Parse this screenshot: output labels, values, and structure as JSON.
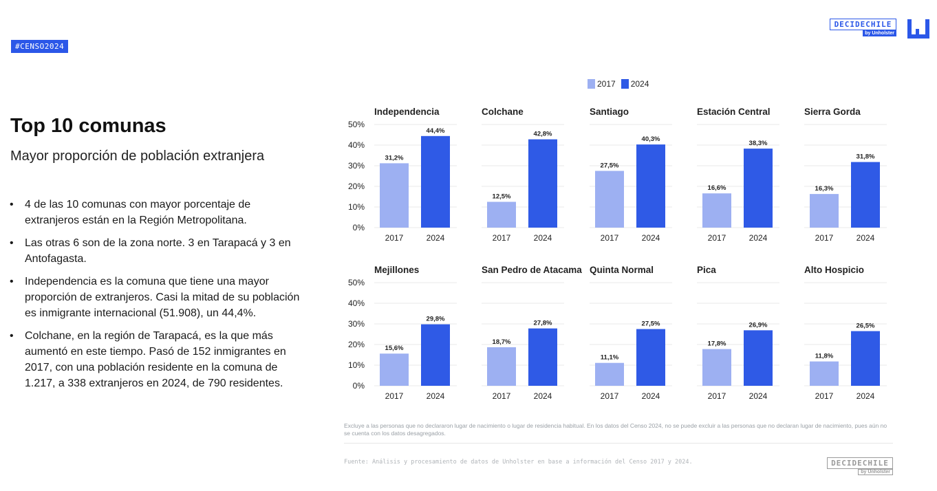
{
  "tag": "#CENSO2024",
  "brand": {
    "name": "DECIDECHILE",
    "by": "by Unholster"
  },
  "title": "Top 10 comunas",
  "subtitle": "Mayor proporción de población extranjera",
  "bullets": [
    "4 de las 10 comunas con mayor porcentaje de extranjeros están en la Región Metropolitana.",
    "Las otras 6 son de la zona norte. 3 en Tarapacá y 3 en Antofagasta.",
    "Independencia es la comuna que tiene una mayor proporción de extranjeros. Casi la mitad de su población es inmigrante internacional (51.908), un 44,4%.",
    "Colchane, en la región de Tarapacá, es la que más aumentó en este tiempo. Pasó de 152 inmigrantes en 2017, con una población residente en la comuna de 1.217, a 338 extranjeros en 2024, de 790 residentes."
  ],
  "colors": {
    "y2017": "#9db0f2",
    "y2024": "#2f5ae6",
    "grid": "#e9e9e9"
  },
  "chart_data": {
    "type": "bar",
    "categories": [
      "2017",
      "2024"
    ],
    "series": [
      {
        "name": "2017"
      },
      {
        "name": "2024"
      }
    ],
    "ylim": [
      0,
      50
    ],
    "yticks": [
      "0%",
      "10%",
      "20%",
      "30%",
      "40%",
      "50%"
    ],
    "panels": [
      {
        "title": "Independencia",
        "values": [
          31.2,
          44.4
        ],
        "labels": [
          "31,2%",
          "44,4%"
        ]
      },
      {
        "title": "Colchane",
        "values": [
          12.5,
          42.8
        ],
        "labels": [
          "12,5%",
          "42,8%"
        ]
      },
      {
        "title": "Santiago",
        "values": [
          27.5,
          40.3
        ],
        "labels": [
          "27,5%",
          "40,3%"
        ]
      },
      {
        "title": "Estación Central",
        "values": [
          16.6,
          38.3
        ],
        "labels": [
          "16,6%",
          "38,3%"
        ]
      },
      {
        "title": "Sierra Gorda",
        "values": [
          16.3,
          31.8
        ],
        "labels": [
          "16,3%",
          "31,8%"
        ]
      },
      {
        "title": "Mejillones",
        "values": [
          15.6,
          29.8
        ],
        "labels": [
          "15,6%",
          "29,8%"
        ]
      },
      {
        "title": "San Pedro de Atacama",
        "values": [
          18.7,
          27.8
        ],
        "labels": [
          "18,7%",
          "27,8%"
        ]
      },
      {
        "title": "Quinta Normal",
        "values": [
          11.1,
          27.5
        ],
        "labels": [
          "11,1%",
          "27,5%"
        ]
      },
      {
        "title": "Pica",
        "values": [
          17.8,
          26.9
        ],
        "labels": [
          "17,8%",
          "26,9%"
        ]
      },
      {
        "title": "Alto Hospicio",
        "values": [
          11.8,
          26.5
        ],
        "labels": [
          "11,8%",
          "26,5%"
        ]
      }
    ]
  },
  "note": "Excluye a las personas que no declararon lugar de nacimiento o lugar de residencia habitual. En los datos del Censo 2024, no se puede excluir a las personas que no declaran lugar de nacimiento, pues aún no se cuenta con los datos desagregados.",
  "source": "Fuente: Análisis y procesamiento de datos de Unholster en base a información del Censo 2017 y 2024."
}
